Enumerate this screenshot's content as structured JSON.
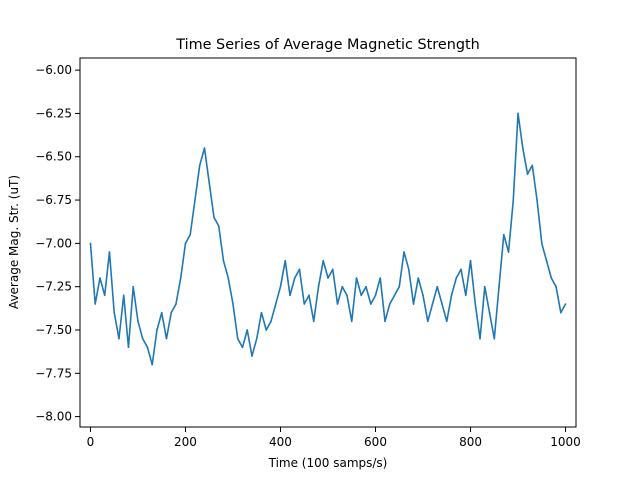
{
  "chart_data": {
    "type": "line",
    "title": "Time Series of Average Magnetic Strength",
    "xlabel": "Time (100 samps/s)",
    "ylabel": "Average Mag. Str. (uT)",
    "xlim": [
      -22,
      1022
    ],
    "ylim": [
      -8.06,
      -5.93
    ],
    "xticks": [
      0,
      200,
      400,
      600,
      800,
      1000
    ],
    "xtick_labels": [
      "0",
      "200",
      "400",
      "600",
      "800",
      "1000"
    ],
    "yticks": [
      -6.0,
      -6.25,
      -6.5,
      -6.75,
      -7.0,
      -7.25,
      -7.5,
      -7.75,
      -8.0
    ],
    "ytick_labels": [
      "−6.00",
      "−6.25",
      "−6.50",
      "−6.75",
      "−7.00",
      "−7.25",
      "−7.50",
      "−7.75",
      "−8.00"
    ],
    "grid": false,
    "legend": "none",
    "line_color": "#1f77b4",
    "series": [
      {
        "x": [
          0,
          10,
          20,
          30,
          40,
          50,
          60,
          70,
          80,
          90,
          100,
          110,
          120,
          130,
          140,
          150,
          160,
          170,
          180,
          190,
          200,
          210,
          220,
          230,
          240,
          250,
          260,
          270,
          280,
          290,
          300,
          310,
          320,
          330,
          340,
          350,
          360,
          370,
          380,
          390,
          400,
          410,
          420,
          430,
          440,
          450,
          460,
          470,
          480,
          490,
          500,
          510,
          520,
          530,
          540,
          550,
          560,
          570,
          580,
          590,
          600,
          610,
          620,
          630,
          640,
          650,
          660,
          670,
          680,
          690,
          700,
          710,
          720,
          730,
          740,
          750,
          760,
          770,
          780,
          790,
          800,
          810,
          820,
          830,
          840,
          850,
          860,
          870,
          880,
          890,
          900,
          910,
          920,
          930,
          940,
          950,
          960,
          970,
          980,
          990,
          1000
        ],
        "values": [
          -7.0,
          -7.35,
          -7.2,
          -7.3,
          -7.05,
          -7.4,
          -7.55,
          -7.3,
          -7.6,
          -7.25,
          -7.45,
          -7.55,
          -7.6,
          -7.7,
          -7.5,
          -7.4,
          -7.55,
          -7.4,
          -7.35,
          -7.2,
          -7.0,
          -6.95,
          -6.75,
          -6.55,
          -6.45,
          -6.65,
          -6.85,
          -6.9,
          -7.1,
          -7.2,
          -7.35,
          -7.55,
          -7.6,
          -7.5,
          -7.65,
          -7.55,
          -7.4,
          -7.5,
          -7.45,
          -7.35,
          -7.25,
          -7.1,
          -7.3,
          -7.2,
          -7.15,
          -7.35,
          -7.3,
          -7.45,
          -7.25,
          -7.1,
          -7.2,
          -7.15,
          -7.35,
          -7.25,
          -7.3,
          -7.45,
          -7.2,
          -7.3,
          -7.25,
          -7.35,
          -7.3,
          -7.2,
          -7.45,
          -7.35,
          -7.3,
          -7.25,
          -7.05,
          -7.15,
          -7.35,
          -7.2,
          -7.3,
          -7.45,
          -7.35,
          -7.25,
          -7.35,
          -7.45,
          -7.3,
          -7.2,
          -7.15,
          -7.3,
          -7.1,
          -7.35,
          -7.55,
          -7.25,
          -7.4,
          -7.55,
          -7.25,
          -6.95,
          -7.05,
          -6.75,
          -6.25,
          -6.45,
          -6.6,
          -6.55,
          -6.75,
          -7.0,
          -7.1,
          -7.2,
          -7.25,
          -7.4,
          -7.35
        ],
        "note_visible": ""
      }
    ]
  }
}
